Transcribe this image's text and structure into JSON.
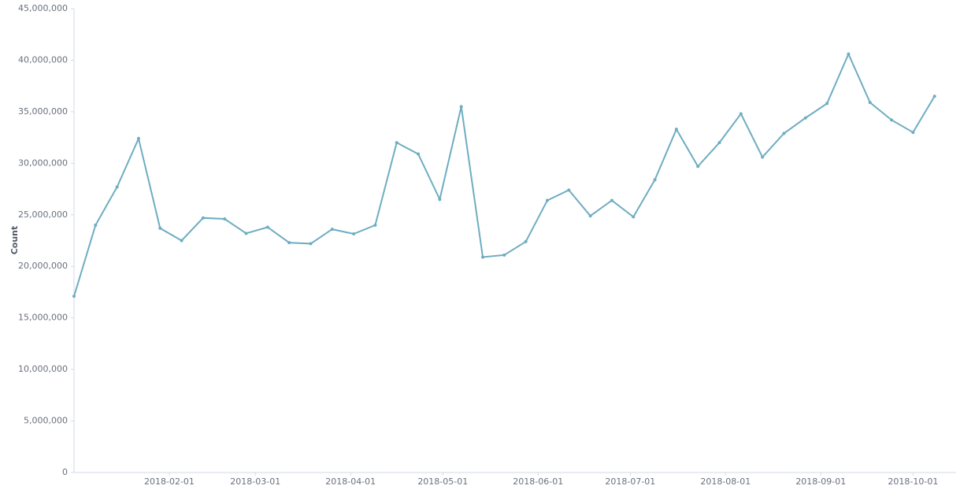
{
  "chart_data": {
    "type": "line",
    "y_label": "Count",
    "x": [
      "2018-01-01",
      "2018-01-08",
      "2018-01-15",
      "2018-01-22",
      "2018-01-29",
      "2018-02-05",
      "2018-02-12",
      "2018-02-19",
      "2018-02-26",
      "2018-03-05",
      "2018-03-12",
      "2018-03-19",
      "2018-03-26",
      "2018-04-02",
      "2018-04-09",
      "2018-04-16",
      "2018-04-23",
      "2018-04-30",
      "2018-05-07",
      "2018-05-14",
      "2018-05-21",
      "2018-05-28",
      "2018-06-04",
      "2018-06-11",
      "2018-06-18",
      "2018-06-25",
      "2018-07-02",
      "2018-07-09",
      "2018-07-16",
      "2018-07-23",
      "2018-07-30",
      "2018-08-06",
      "2018-08-13",
      "2018-08-20",
      "2018-08-27",
      "2018-09-03",
      "2018-09-10",
      "2018-09-17",
      "2018-09-24",
      "2018-10-01",
      "2018-10-08"
    ],
    "series": [
      {
        "name": "Count",
        "color": "#6eadc1",
        "values": [
          17100000,
          24000000,
          27700000,
          32400000,
          23700000,
          22500000,
          24700000,
          24600000,
          23200000,
          23800000,
          22300000,
          22200000,
          23600000,
          23150000,
          24000000,
          32000000,
          30900000,
          26500000,
          35500000,
          20900000,
          21100000,
          22400000,
          26400000,
          27400000,
          24900000,
          26400000,
          24800000,
          28400000,
          33300000,
          29700000,
          32000000,
          34800000,
          30600000,
          32900000,
          34400000,
          35800000,
          40600000,
          35900000,
          34200000,
          33000000,
          36500000
        ]
      }
    ],
    "xlim": [
      "2018-01-01",
      "2018-10-15"
    ],
    "xticks": [
      "2018-02-01",
      "2018-03-01",
      "2018-04-01",
      "2018-05-01",
      "2018-06-01",
      "2018-07-01",
      "2018-08-01",
      "2018-09-01",
      "2018-10-01"
    ],
    "ylim": [
      0,
      45000000
    ],
    "yticks": [
      0,
      {
        "value": 5000000,
        "label": "5,000,000"
      },
      {
        "value": 10000000,
        "label": "10,000,000"
      },
      {
        "value": 15000000,
        "label": "15,000,000"
      },
      {
        "value": 20000000,
        "label": "20,000,000"
      },
      {
        "value": 25000000,
        "label": "25,000,000"
      },
      {
        "value": 30000000,
        "label": "30,000,000"
      },
      {
        "value": 35000000,
        "label": "35,000,000"
      },
      {
        "value": 40000000,
        "label": "40,000,000"
      },
      {
        "value": 45000000,
        "label": "45,000,000"
      }
    ],
    "grid": false
  }
}
